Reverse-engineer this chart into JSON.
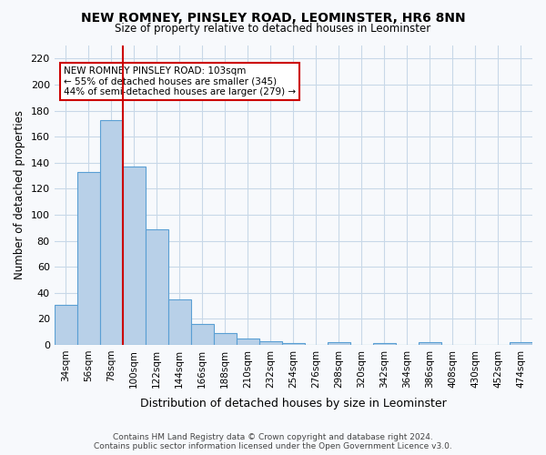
{
  "title": "NEW ROMNEY, PINSLEY ROAD, LEOMINSTER, HR6 8NN",
  "subtitle": "Size of property relative to detached houses in Leominster",
  "xlabel": "Distribution of detached houses by size in Leominster",
  "ylabel": "Number of detached properties",
  "bar_color": "#b8d0e8",
  "bar_edge_color": "#5a9fd4",
  "bin_labels": [
    "34sqm",
    "56sqm",
    "78sqm",
    "100sqm",
    "122sqm",
    "144sqm",
    "166sqm",
    "188sqm",
    "210sqm",
    "232sqm",
    "254sqm",
    "276sqm",
    "298sqm",
    "320sqm",
    "342sqm",
    "364sqm",
    "386sqm",
    "408sqm",
    "430sqm",
    "452sqm",
    "474sqm"
  ],
  "bin_values": [
    31,
    133,
    173,
    137,
    89,
    35,
    16,
    9,
    5,
    3,
    1,
    0,
    2,
    0,
    1,
    0,
    2,
    0,
    0,
    0,
    2
  ],
  "vline_x": 3,
  "vline_color": "#cc0000",
  "ylim": [
    0,
    230
  ],
  "yticks": [
    0,
    20,
    40,
    60,
    80,
    100,
    120,
    140,
    160,
    180,
    200,
    220
  ],
  "annotation_text": "NEW ROMNEY PINSLEY ROAD: 103sqm\n← 55% of detached houses are smaller (345)\n44% of semi-detached houses are larger (279) →",
  "footer_line1": "Contains HM Land Registry data © Crown copyright and database right 2024.",
  "footer_line2": "Contains public sector information licensed under the Open Government Licence v3.0.",
  "background_color": "#f7f9fc"
}
